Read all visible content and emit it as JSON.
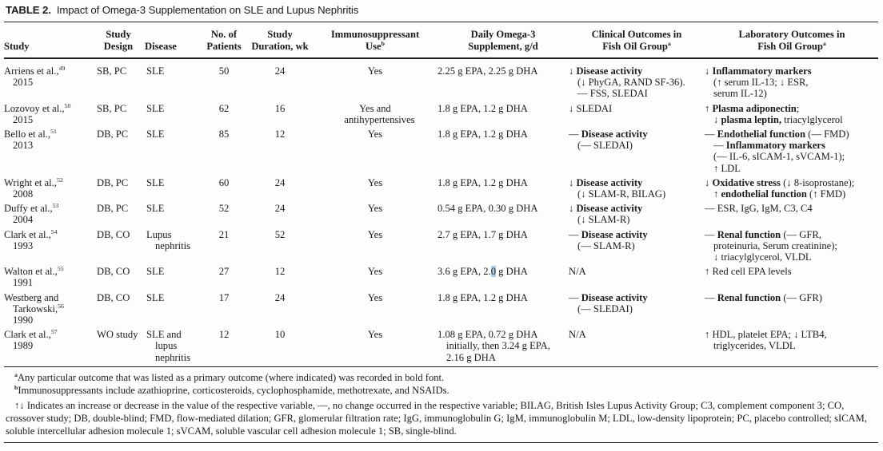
{
  "caption": {
    "label": "TABLE 2.",
    "text": "Impact of Omega-3 Supplementation on SLE and Lupus Nephritis"
  },
  "colors": {
    "selection_highlight": "#aecfea",
    "text": "#1b1b1b",
    "rule": "#1e1e1e"
  },
  "table": {
    "columns": [
      {
        "key": "study",
        "lines": [
          "Study"
        ]
      },
      {
        "key": "design",
        "lines": [
          "Study",
          "Design"
        ]
      },
      {
        "key": "disease",
        "lines": [
          "Disease"
        ]
      },
      {
        "key": "patients",
        "lines": [
          "No. of",
          "Patients"
        ]
      },
      {
        "key": "duration",
        "lines": [
          "Study",
          "Duration, wk"
        ]
      },
      {
        "key": "immuno",
        "lines": [
          "Immunosuppressant",
          {
            "s": [
              {
                "t": "Use"
              },
              {
                "t": "b",
                "sup": 1
              }
            ]
          }
        ]
      },
      {
        "key": "omega3",
        "lines": [
          "Daily Omega-3",
          "Supplement, g/d"
        ]
      },
      {
        "key": "clinical",
        "lines": [
          "Clinical Outcomes in",
          {
            "s": [
              {
                "t": "Fish Oil Group"
              },
              {
                "t": "a",
                "sup": 1
              }
            ]
          }
        ]
      },
      {
        "key": "laboratory",
        "lines": [
          "Laboratory Outcomes in",
          {
            "s": [
              {
                "t": "Fish Oil Group"
              },
              {
                "t": "a",
                "sup": 1
              }
            ]
          }
        ]
      }
    ],
    "rows": [
      {
        "study": [
          {
            "s": [
              {
                "t": "Arriens et al.,"
              },
              {
                "t": "49",
                "sup": 1
              }
            ]
          },
          {
            "i": 1,
            "s": [
              {
                "t": "2015"
              }
            ]
          }
        ],
        "design": "SB, PC",
        "disease": "SLE",
        "patients": "50",
        "duration": "24",
        "immuno": "Yes",
        "omega3": "2.25 g EPA, 2.25 g DHA",
        "clinical": [
          {
            "s": [
              {
                "t": "↓ "
              },
              {
                "t": "Disease activity",
                "b": 1
              }
            ]
          },
          {
            "i": 1,
            "s": [
              {
                "t": "(↓ PhyGA, RAND SF-36)."
              }
            ]
          },
          {
            "i": 1,
            "s": [
              {
                "t": "— FSS, SLEDAI"
              }
            ]
          }
        ],
        "laboratory": [
          {
            "s": [
              {
                "t": "↓ "
              },
              {
                "t": "Inflammatory markers",
                "b": 1
              }
            ]
          },
          {
            "i": 1,
            "s": [
              {
                "t": "(↑ serum IL-13; ↓ ESR,"
              }
            ]
          },
          {
            "i": 1,
            "s": [
              {
                "t": "serum IL-12)"
              }
            ]
          }
        ]
      },
      {
        "study": [
          {
            "s": [
              {
                "t": "Lozovoy et al.,"
              },
              {
                "t": "50",
                "sup": 1
              }
            ]
          },
          {
            "i": 1,
            "s": [
              {
                "t": "2015"
              }
            ]
          }
        ],
        "design": "SB, PC",
        "disease": "SLE",
        "patients": "62",
        "duration": "16",
        "immuno": [
          {
            "s": [
              {
                "t": "Yes and"
              }
            ]
          },
          {
            "i": 1,
            "s": [
              {
                "t": "antihypertensives"
              }
            ]
          }
        ],
        "omega3": "1.8 g EPA, 1.2 g DHA",
        "clinical": "↓ SLEDAI",
        "laboratory": [
          {
            "s": [
              {
                "t": "↑ "
              },
              {
                "t": "Plasma adiponectin",
                "b": 1
              },
              {
                "t": ";"
              }
            ]
          },
          {
            "i": 1,
            "s": [
              {
                "t": "↓ "
              },
              {
                "t": "plasma leptin,",
                "b": 1
              },
              {
                "t": " triacylglycerol"
              }
            ]
          }
        ]
      },
      {
        "study": [
          {
            "s": [
              {
                "t": "Bello et al.,"
              },
              {
                "t": "51",
                "sup": 1
              }
            ]
          },
          {
            "i": 1,
            "s": [
              {
                "t": "2013"
              }
            ]
          }
        ],
        "design": "DB, PC",
        "disease": "SLE",
        "patients": "85",
        "duration": "12",
        "immuno": "Yes",
        "omega3": "1.8 g EPA, 1.2 g DHA",
        "clinical": [
          {
            "s": [
              {
                "t": "— "
              },
              {
                "t": "Disease activity",
                "b": 1
              }
            ]
          },
          {
            "i": 1,
            "s": [
              {
                "t": "(— SLEDAI)"
              }
            ]
          }
        ],
        "laboratory": [
          {
            "s": [
              {
                "t": "— "
              },
              {
                "t": "Endothelial function",
                "b": 1
              },
              {
                "t": " (— FMD)"
              }
            ]
          },
          {
            "i": 1,
            "s": [
              {
                "t": "— "
              },
              {
                "t": "Inflammatory markers",
                "b": 1
              }
            ]
          },
          {
            "i": 1,
            "s": [
              {
                "t": "(— IL-6, sICAM-1, sVCAM-1);"
              }
            ]
          },
          {
            "i": 1,
            "s": [
              {
                "t": "↑ LDL"
              }
            ]
          }
        ]
      },
      {
        "study": [
          {
            "s": [
              {
                "t": "Wright et al.,"
              },
              {
                "t": "52",
                "sup": 1
              }
            ]
          },
          {
            "i": 1,
            "s": [
              {
                "t": "2008"
              }
            ]
          }
        ],
        "design": "DB, PC",
        "disease": "SLE",
        "patients": "60",
        "duration": "24",
        "immuno": "Yes",
        "omega3": "1.8 g EPA, 1.2 g DHA",
        "clinical": [
          {
            "s": [
              {
                "t": "↓ "
              },
              {
                "t": "Disease activity",
                "b": 1
              }
            ]
          },
          {
            "i": 1,
            "s": [
              {
                "t": "(↓ SLAM-R, BILAG)"
              }
            ]
          }
        ],
        "laboratory": [
          {
            "s": [
              {
                "t": "↓ "
              },
              {
                "t": "Oxidative stress",
                "b": 1
              },
              {
                "t": " (↓ 8-isoprostane);"
              }
            ]
          },
          {
            "i": 1,
            "s": [
              {
                "t": "↑ "
              },
              {
                "t": "endothelial function",
                "b": 1
              },
              {
                "t": " (↑ FMD)"
              }
            ]
          }
        ]
      },
      {
        "study": [
          {
            "s": [
              {
                "t": "Duffy et al.,"
              },
              {
                "t": "53",
                "sup": 1
              }
            ]
          },
          {
            "i": 1,
            "s": [
              {
                "t": "2004"
              }
            ]
          }
        ],
        "design": "DB, PC",
        "disease": "SLE",
        "patients": "52",
        "duration": "24",
        "immuno": "Yes",
        "omega3": "0.54 g EPA, 0.30 g DHA",
        "clinical": [
          {
            "s": [
              {
                "t": "↓ "
              },
              {
                "t": "Disease activity",
                "b": 1
              }
            ]
          },
          {
            "i": 1,
            "s": [
              {
                "t": "(↓ SLAM-R)"
              }
            ]
          }
        ],
        "laboratory": "— ESR, IgG, IgM, C3, C4"
      },
      {
        "study": [
          {
            "s": [
              {
                "t": "Clark et al.,"
              },
              {
                "t": "54",
                "sup": 1
              }
            ]
          },
          {
            "i": 1,
            "s": [
              {
                "t": "1993"
              }
            ]
          }
        ],
        "design": "DB, CO",
        "disease": [
          {
            "s": [
              {
                "t": "Lupus"
              }
            ]
          },
          {
            "i": 1,
            "s": [
              {
                "t": "nephritis"
              }
            ]
          }
        ],
        "patients": "21",
        "duration": "52",
        "immuno": "Yes",
        "omega3": "2.7 g EPA, 1.7 g DHA",
        "clinical": [
          {
            "s": [
              {
                "t": "— "
              },
              {
                "t": "Disease activity",
                "b": 1
              }
            ]
          },
          {
            "i": 1,
            "s": [
              {
                "t": "(— SLAM-R)"
              }
            ]
          }
        ],
        "laboratory": [
          {
            "s": [
              {
                "t": "— "
              },
              {
                "t": "Renal function",
                "b": 1
              },
              {
                "t": " (— GFR,"
              }
            ]
          },
          {
            "i": 1,
            "s": [
              {
                "t": "proteinuria, Serum creatinine);"
              }
            ]
          },
          {
            "i": 1,
            "s": [
              {
                "t": "↓ triacylglycerol, VLDL"
              }
            ]
          }
        ]
      },
      {
        "study": [
          {
            "s": [
              {
                "t": "Walton et al.,"
              },
              {
                "t": "55",
                "sup": 1
              }
            ]
          },
          {
            "i": 1,
            "s": [
              {
                "t": "1991"
              }
            ]
          }
        ],
        "design": "DB, CO",
        "disease": "SLE",
        "patients": "27",
        "duration": "12",
        "immuno": "Yes",
        "omega3": [
          {
            "s": [
              {
                "t": "3.6 g EPA, 2."
              },
              {
                "t": "0",
                "hl": 1
              },
              {
                "t": " g DHA"
              }
            ]
          }
        ],
        "clinical": "N/A",
        "laboratory": "↑ Red cell EPA levels"
      },
      {
        "study": [
          {
            "s": [
              {
                "t": "Westberg and"
              }
            ]
          },
          {
            "i": 1,
            "s": [
              {
                "t": "Tarkowski,"
              },
              {
                "t": "56",
                "sup": 1
              }
            ]
          },
          {
            "i": 1,
            "s": [
              {
                "t": "1990"
              }
            ]
          }
        ],
        "design": "DB, CO",
        "disease": "SLE",
        "patients": "17",
        "duration": "24",
        "immuno": "Yes",
        "omega3": "1.8 g EPA, 1.2 g DHA",
        "clinical": [
          {
            "s": [
              {
                "t": "— "
              },
              {
                "t": "Disease activity",
                "b": 1
              }
            ]
          },
          {
            "i": 1,
            "s": [
              {
                "t": "(— SLEDAI)"
              }
            ]
          }
        ],
        "laboratory": [
          {
            "s": [
              {
                "t": "— "
              },
              {
                "t": "Renal function",
                "b": 1
              },
              {
                "t": " (— GFR)"
              }
            ]
          }
        ]
      },
      {
        "study": [
          {
            "s": [
              {
                "t": "Clark et al.,"
              },
              {
                "t": "57",
                "sup": 1
              }
            ]
          },
          {
            "i": 1,
            "s": [
              {
                "t": "1989"
              }
            ]
          }
        ],
        "design": "WO study",
        "disease": [
          {
            "s": [
              {
                "t": "SLE and"
              }
            ]
          },
          {
            "i": 1,
            "s": [
              {
                "t": "lupus"
              }
            ]
          },
          {
            "i": 1,
            "s": [
              {
                "t": "nephritis"
              }
            ]
          }
        ],
        "patients": "12",
        "duration": "10",
        "immuno": "Yes",
        "omega3": [
          {
            "s": [
              {
                "t": "1.08 g EPA, 0.72 g DHA"
              }
            ]
          },
          {
            "i": 1,
            "s": [
              {
                "t": "initially, then 3.24 g EPA,"
              }
            ]
          },
          {
            "i": 1,
            "s": [
              {
                "t": "2.16 g DHA"
              }
            ]
          }
        ],
        "clinical": "N/A",
        "laboratory": [
          {
            "s": [
              {
                "t": "↑ HDL, platelet EPA; ↓ LTB4,"
              }
            ]
          },
          {
            "i": 1,
            "s": [
              {
                "t": "triglycerides, VLDL"
              }
            ]
          }
        ]
      }
    ]
  },
  "footnotes": [
    {
      "name": "footnote-a",
      "s": [
        {
          "t": "a",
          "sup": 1,
          "b": 1
        },
        {
          "t": "Any particular outcome that was listed as a primary outcome (where indicated) was recorded in bold font."
        }
      ]
    },
    {
      "name": "footnote-b",
      "s": [
        {
          "t": "b",
          "sup": 1,
          "b": 1
        },
        {
          "t": "Immunosuppressants include azathioprine, corticosteroids, cyclophosphamide, methotrexate, and NSAIDs."
        }
      ]
    },
    {
      "name": "footnote-abbreviations",
      "s": [
        {
          "t": "↑↓ Indicates an increase or decrease in the value of the respective variable, —, no change occurred in the respective variable; BILAG, British Isles Lupus Activity Group; C3, complement component 3; CO, crossover study; DB, double-blind; FMD, flow-mediated dilation; GFR, glomerular filtration rate; IgG, immunoglobulin G; IgM, immunoglobulin M; LDL, low-density lipoprotein; PC, placebo controlled; sICAM, soluble intercellular adhesion molecule 1; sVCAM, soluble vascular cell adhesion molecule 1; SB, single-blind."
        }
      ]
    }
  ]
}
